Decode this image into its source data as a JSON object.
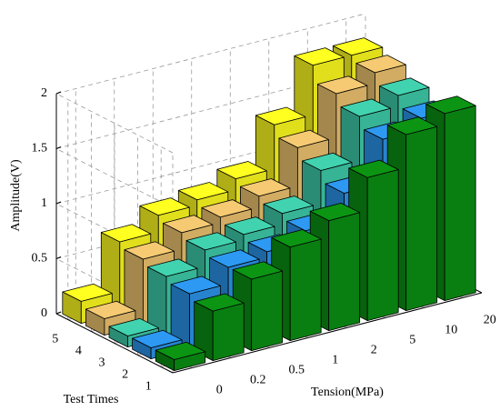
{
  "chart_data": {
    "type": "bar3d",
    "xlabel": "Tension(MPa)",
    "ylabel": "Test Times",
    "zlabel": "Amplitude(V)",
    "categories": [
      "0",
      "0.2",
      "0.5",
      "1",
      "2",
      "5",
      "10",
      "20"
    ],
    "series": [
      {
        "name": "1",
        "color": "#0a8a12",
        "values": [
          0.1,
          0.45,
          0.65,
          0.85,
          1.0,
          1.3,
          1.6,
          1.7
        ]
      },
      {
        "name": "2",
        "color": "#2a8ee0",
        "values": [
          0.1,
          0.5,
          0.65,
          0.7,
          0.8,
          1.05,
          1.45,
          1.55
        ]
      },
      {
        "name": "3",
        "color": "#3cc3a2",
        "values": [
          0.1,
          0.55,
          0.7,
          0.75,
          0.85,
          1.15,
          1.55,
          1.65
        ]
      },
      {
        "name": "4",
        "color": "#e3bb6a",
        "values": [
          0.15,
          0.6,
          0.75,
          0.8,
          0.9,
          1.25,
          1.65,
          1.75
        ]
      },
      {
        "name": "5",
        "color": "#f5f21e",
        "values": [
          0.2,
          0.65,
          0.8,
          0.85,
          0.95,
          1.35,
          1.8,
          1.8
        ]
      }
    ],
    "zlim": [
      0,
      2
    ],
    "zticks": [
      0,
      0.5,
      1,
      1.5,
      2
    ],
    "grid": true
  }
}
